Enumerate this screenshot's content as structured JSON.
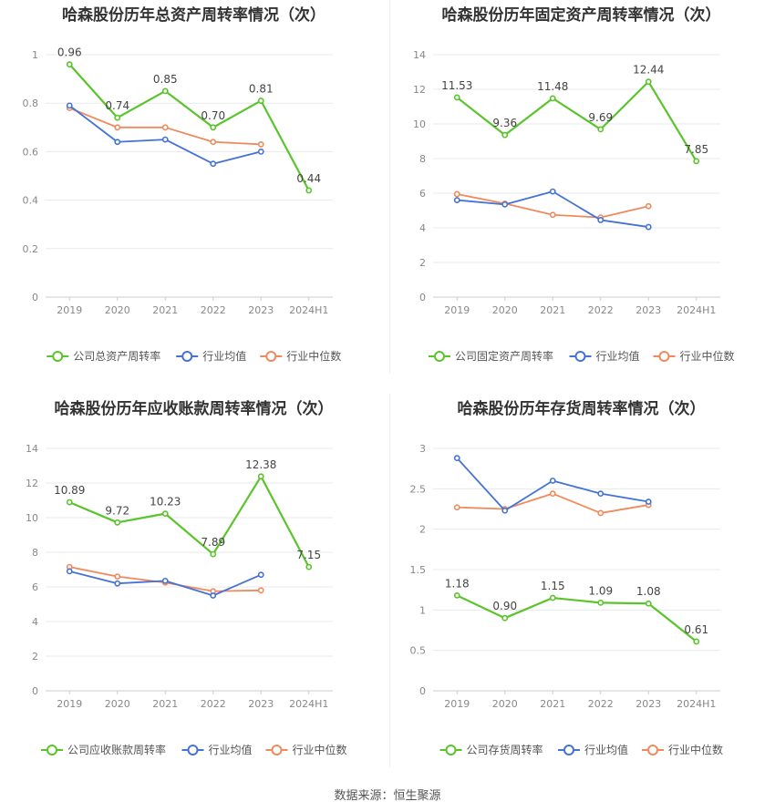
{
  "colors": {
    "company": "#5ac42b",
    "industry_avg": "#4472d6",
    "industry_median": "#f08a5d",
    "grid": "#e8e8e8",
    "axis_text": "#888888"
  },
  "legend_labels": {
    "industry_avg": "行业均值",
    "industry_median": "行业中位数"
  },
  "source": {
    "label": "数据来源：",
    "value": "恒生聚源"
  },
  "chart_data": [
    {
      "type": "line",
      "title": "哈森股份历年总资产周转率情况（次）",
      "categories": [
        "2019",
        "2020",
        "2021",
        "2022",
        "2023",
        "2024H1"
      ],
      "ylim": [
        0,
        1
      ],
      "yticks": [
        "0",
        "0.2",
        "0.4",
        "0.6",
        "0.8",
        "1"
      ],
      "ytick_values": [
        0,
        0.2,
        0.4,
        0.6,
        0.8,
        1
      ],
      "series": [
        {
          "name": "公司总资产周转率",
          "key": "company",
          "values": [
            0.96,
            0.74,
            0.85,
            0.7,
            0.81,
            0.44
          ],
          "labels": [
            "0.96",
            "0.74",
            "0.85",
            "0.70",
            "0.81",
            "0.44"
          ]
        },
        {
          "name": "行业均值",
          "key": "industry_avg",
          "values": [
            0.79,
            0.64,
            0.65,
            0.55,
            0.6,
            null
          ]
        },
        {
          "name": "行业中位数",
          "key": "industry_median",
          "values": [
            0.78,
            0.7,
            0.7,
            0.64,
            0.63,
            null
          ]
        }
      ]
    },
    {
      "type": "line",
      "title": "哈森股份历年固定资产周转率情况（次）",
      "categories": [
        "2019",
        "2020",
        "2021",
        "2022",
        "2023",
        "2024H1"
      ],
      "ylim": [
        0,
        14
      ],
      "yticks": [
        "0",
        "2",
        "4",
        "6",
        "8",
        "10",
        "12",
        "14"
      ],
      "ytick_values": [
        0,
        2,
        4,
        6,
        8,
        10,
        12,
        14
      ],
      "series": [
        {
          "name": "公司固定资产周转率",
          "key": "company",
          "values": [
            11.53,
            9.36,
            11.48,
            9.69,
            12.44,
            7.85
          ],
          "labels": [
            "11.53",
            "9.36",
            "11.48",
            "9.69",
            "12.44",
            "7.85"
          ]
        },
        {
          "name": "行业均值",
          "key": "industry_avg",
          "values": [
            5.6,
            5.35,
            6.1,
            4.45,
            4.05,
            null
          ]
        },
        {
          "name": "行业中位数",
          "key": "industry_median",
          "values": [
            5.95,
            5.4,
            4.75,
            4.6,
            5.25,
            null
          ]
        }
      ]
    },
    {
      "type": "line",
      "title": "哈森股份历年应收账款周转率情况（次）",
      "categories": [
        "2019",
        "2020",
        "2021",
        "2022",
        "2023",
        "2024H1"
      ],
      "ylim": [
        0,
        14
      ],
      "yticks": [
        "0",
        "2",
        "4",
        "6",
        "8",
        "10",
        "12",
        "14"
      ],
      "ytick_values": [
        0,
        2,
        4,
        6,
        8,
        10,
        12,
        14
      ],
      "series": [
        {
          "name": "公司应收账款周转率",
          "key": "company",
          "values": [
            10.89,
            9.72,
            10.23,
            7.89,
            12.38,
            7.15
          ],
          "labels": [
            "10.89",
            "9.72",
            "10.23",
            "7.89",
            "12.38",
            "7.15"
          ]
        },
        {
          "name": "行业均值",
          "key": "industry_avg",
          "values": [
            6.9,
            6.2,
            6.35,
            5.5,
            6.7,
            null
          ]
        },
        {
          "name": "行业中位数",
          "key": "industry_median",
          "values": [
            7.15,
            6.6,
            6.25,
            5.75,
            5.8,
            null
          ]
        }
      ]
    },
    {
      "type": "line",
      "title": "哈森股份历年存货周转率情况（次）",
      "categories": [
        "2019",
        "2020",
        "2021",
        "2022",
        "2023",
        "2024H1"
      ],
      "ylim": [
        0,
        3
      ],
      "yticks": [
        "0",
        "0.5",
        "1",
        "1.5",
        "2",
        "2.5",
        "3"
      ],
      "ytick_values": [
        0,
        0.5,
        1,
        1.5,
        2,
        2.5,
        3
      ],
      "series": [
        {
          "name": "公司存货周转率",
          "key": "company",
          "values": [
            1.18,
            0.9,
            1.15,
            1.09,
            1.08,
            0.61
          ],
          "labels": [
            "1.18",
            "0.90",
            "1.15",
            "1.09",
            "1.08",
            "0.61"
          ]
        },
        {
          "name": "行业均值",
          "key": "industry_avg",
          "values": [
            2.88,
            2.23,
            2.6,
            2.44,
            2.34,
            null
          ]
        },
        {
          "name": "行业中位数",
          "key": "industry_median",
          "values": [
            2.27,
            2.25,
            2.44,
            2.2,
            2.3,
            null
          ]
        }
      ]
    }
  ]
}
